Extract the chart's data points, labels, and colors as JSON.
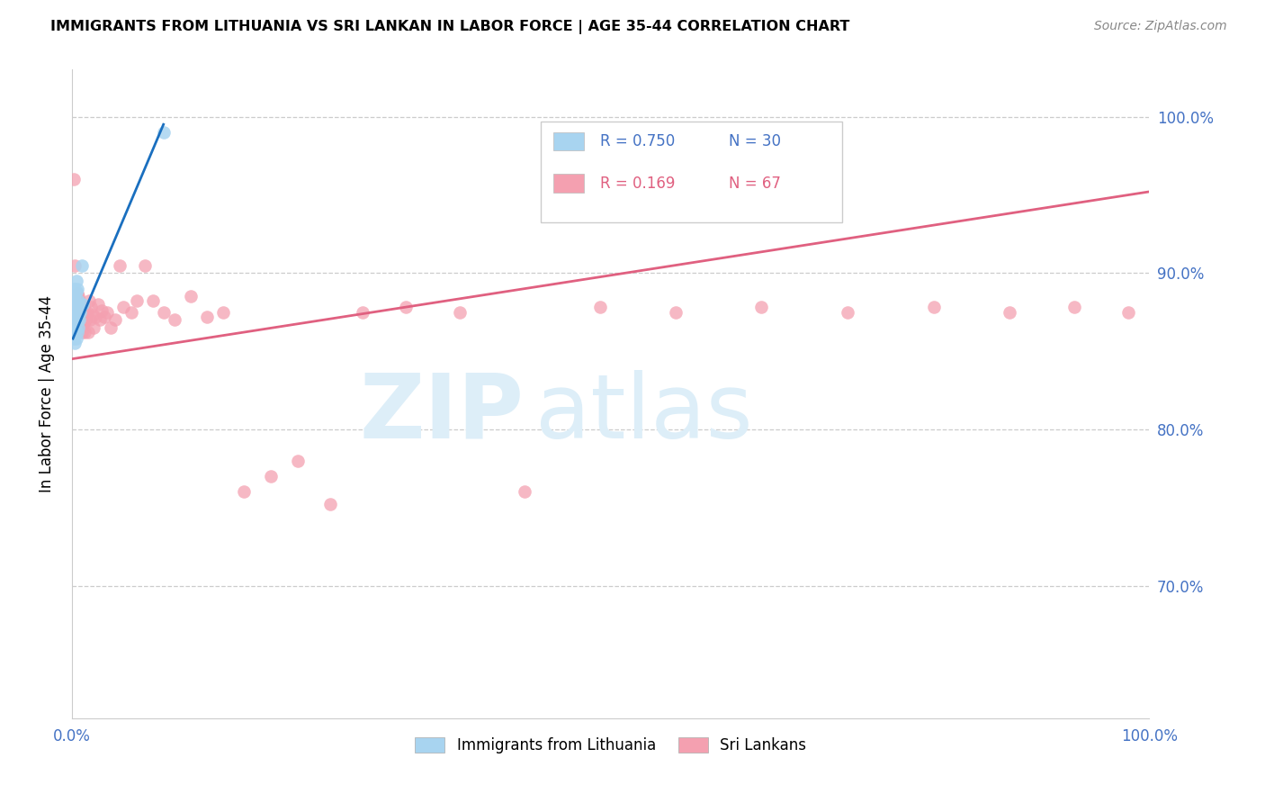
{
  "title": "IMMIGRANTS FROM LITHUANIA VS SRI LANKAN IN LABOR FORCE | AGE 35-44 CORRELATION CHART",
  "source": "Source: ZipAtlas.com",
  "ylabel": "In Labor Force | Age 35-44",
  "ytick_labels": [
    "100.0%",
    "90.0%",
    "80.0%",
    "70.0%"
  ],
  "ytick_values": [
    1.0,
    0.9,
    0.8,
    0.7
  ],
  "xmin": 0.0,
  "xmax": 1.0,
  "ymin": 0.615,
  "ymax": 1.03,
  "legend_r1": "R = 0.750",
  "legend_n1": "N = 30",
  "legend_r2": "R = 0.169",
  "legend_n2": "N = 67",
  "legend_label1": "Immigrants from Lithuania",
  "legend_label2": "Sri Lankans",
  "blue_color": "#A8D4F0",
  "blue_line_color": "#1A6FBF",
  "pink_color": "#F4A0B0",
  "pink_line_color": "#E06080",
  "watermark_zip": "ZIP",
  "watermark_atlas": "atlas",
  "watermark_color": "#DDEEF8",
  "lithuania_x": [
    0.001,
    0.001,
    0.001,
    0.002,
    0.002,
    0.002,
    0.002,
    0.003,
    0.003,
    0.003,
    0.003,
    0.003,
    0.004,
    0.004,
    0.004,
    0.004,
    0.004,
    0.005,
    0.005,
    0.005,
    0.005,
    0.006,
    0.006,
    0.006,
    0.007,
    0.007,
    0.008,
    0.009,
    0.01,
    0.085
  ],
  "lithuania_y": [
    0.875,
    0.883,
    0.89,
    0.858,
    0.868,
    0.876,
    0.885,
    0.855,
    0.863,
    0.872,
    0.882,
    0.89,
    0.858,
    0.868,
    0.88,
    0.888,
    0.895,
    0.862,
    0.87,
    0.88,
    0.89,
    0.865,
    0.875,
    0.882,
    0.87,
    0.878,
    0.875,
    0.905,
    0.88,
    0.99
  ],
  "srilanka_x": [
    0.002,
    0.003,
    0.003,
    0.004,
    0.004,
    0.004,
    0.005,
    0.005,
    0.005,
    0.006,
    0.006,
    0.006,
    0.007,
    0.007,
    0.008,
    0.008,
    0.009,
    0.009,
    0.01,
    0.01,
    0.011,
    0.011,
    0.012,
    0.012,
    0.013,
    0.014,
    0.015,
    0.016,
    0.017,
    0.018,
    0.019,
    0.02,
    0.022,
    0.024,
    0.026,
    0.028,
    0.03,
    0.033,
    0.036,
    0.04,
    0.044,
    0.048,
    0.055,
    0.06,
    0.068,
    0.075,
    0.085,
    0.095,
    0.11,
    0.125,
    0.14,
    0.16,
    0.185,
    0.21,
    0.24,
    0.27,
    0.31,
    0.36,
    0.42,
    0.49,
    0.56,
    0.64,
    0.72,
    0.8,
    0.87,
    0.93,
    0.98
  ],
  "srilanka_y": [
    0.96,
    0.88,
    0.905,
    0.875,
    0.882,
    0.87,
    0.872,
    0.882,
    0.887,
    0.873,
    0.878,
    0.885,
    0.875,
    0.882,
    0.87,
    0.878,
    0.862,
    0.872,
    0.868,
    0.875,
    0.878,
    0.868,
    0.875,
    0.862,
    0.87,
    0.875,
    0.862,
    0.882,
    0.87,
    0.878,
    0.873,
    0.865,
    0.872,
    0.88,
    0.87,
    0.876,
    0.872,
    0.875,
    0.865,
    0.87,
    0.905,
    0.878,
    0.875,
    0.882,
    0.905,
    0.882,
    0.875,
    0.87,
    0.885,
    0.872,
    0.875,
    0.76,
    0.77,
    0.78,
    0.752,
    0.875,
    0.878,
    0.875,
    0.76,
    0.878,
    0.875,
    0.878,
    0.875,
    0.878,
    0.875,
    0.878,
    0.875
  ],
  "pink_line_x0": 0.0,
  "pink_line_y0": 0.845,
  "pink_line_x1": 1.0,
  "pink_line_y1": 0.952,
  "blue_line_x0": 0.001,
  "blue_line_y0": 0.858,
  "blue_line_x1": 0.085,
  "blue_line_y1": 0.995
}
